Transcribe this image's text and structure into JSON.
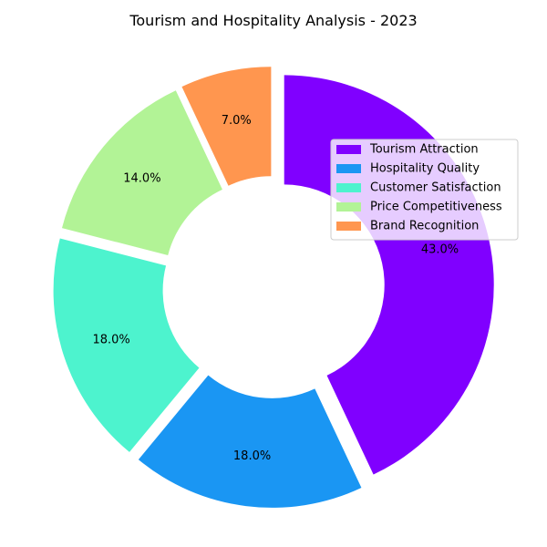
{
  "chart_data": {
    "type": "pie",
    "style": "donut",
    "title": "Tourism and Hospitality Analysis - 2023",
    "categories": [
      "Tourism Attraction",
      "Hospitality Quality",
      "Customer Satisfaction",
      "Price Competitiveness",
      "Brand Recognition"
    ],
    "values": [
      43.0,
      18.0,
      18.0,
      14.0,
      7.0
    ],
    "value_labels": [
      "43.0%",
      "18.0%",
      "18.0%",
      "14.0%",
      "7.0%"
    ],
    "colors": [
      "#8000ff",
      "#1a96f3",
      "#4df3ce",
      "#b2f396",
      "#ff964f"
    ],
    "legend_position": "right"
  }
}
